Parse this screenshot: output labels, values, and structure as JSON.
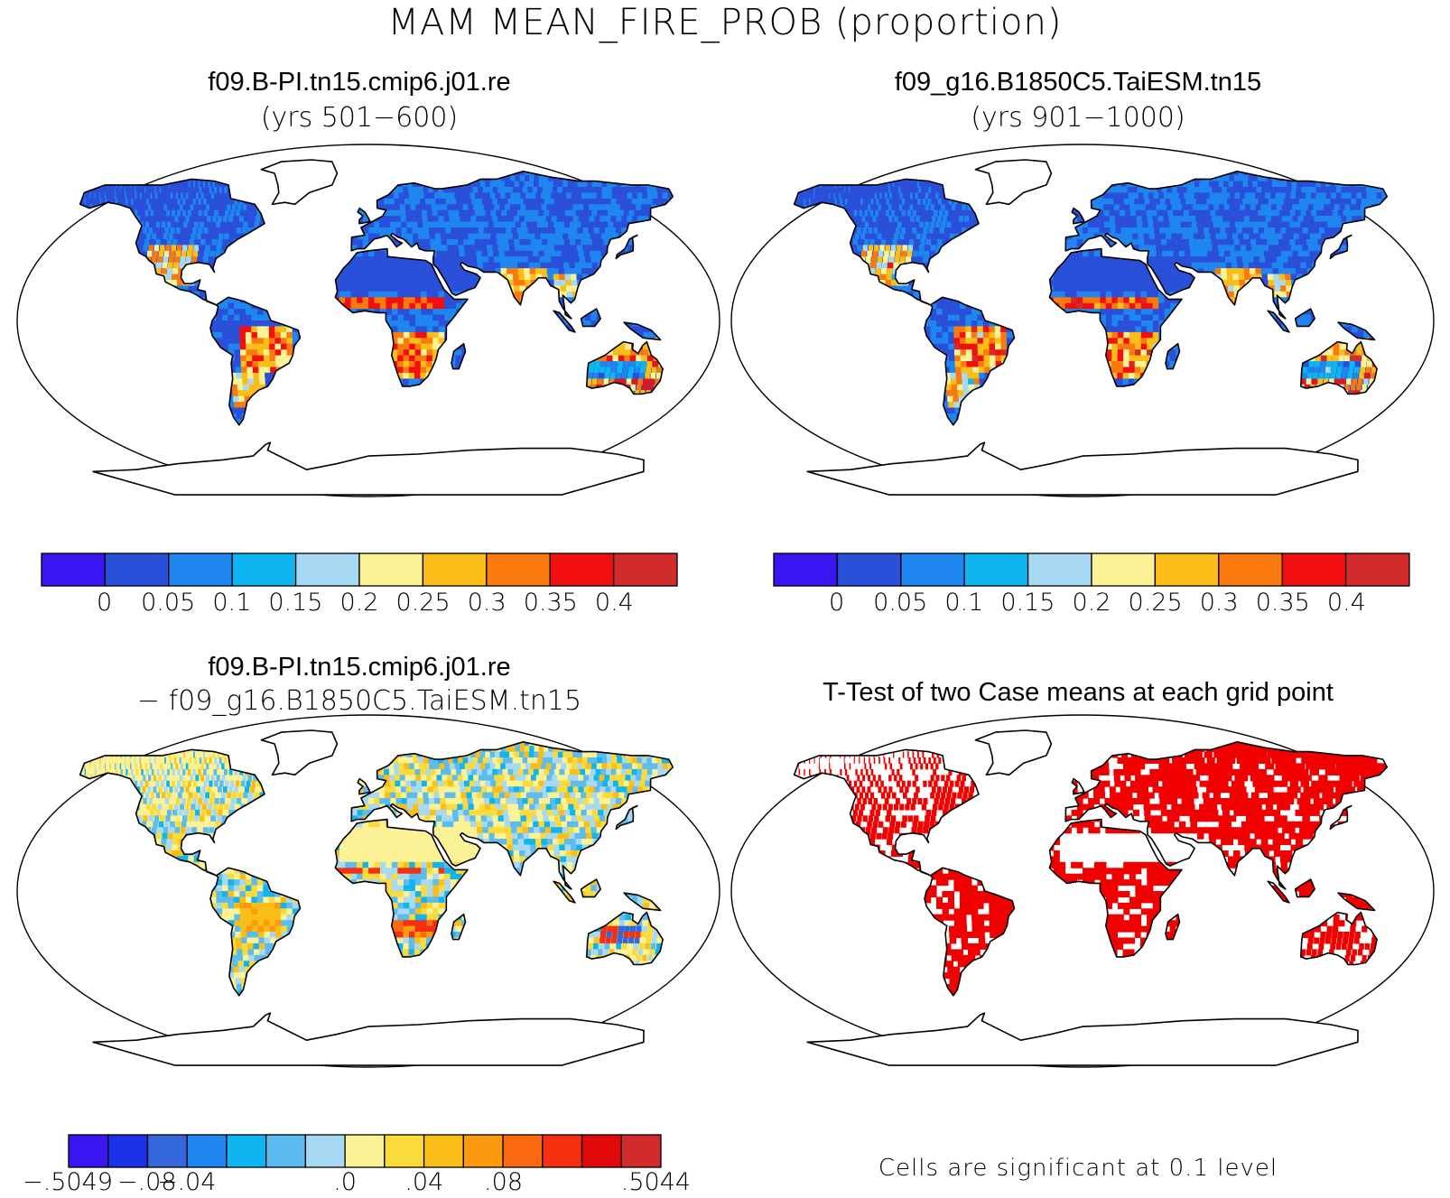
{
  "title": "MAM MEAN_FIRE_PROB (proportion)",
  "panels": {
    "top_left": {
      "title": "f09.B-PI.tn15.cmip6.j01.re",
      "subtitle": "(yrs 501−600)"
    },
    "top_right": {
      "title": "f09_g16.B1850C5.TaiESM.tn15",
      "subtitle": "(yrs 901−1000)"
    },
    "bottom_left": {
      "title": "f09.B-PI.tn15.cmip6.j01.re",
      "subtitle": "− f09_g16.B1850C5.TaiESM.tn15"
    },
    "bottom_right": {
      "title": "T-Test of two Case means at each grid point",
      "footnote": "Cells are significant at 0.1 level"
    }
  },
  "colorbar_main": {
    "colors": [
      "#3a16f2",
      "#2a4fd9",
      "#1f86f0",
      "#0fb5f0",
      "#a8d9f2",
      "#fbf296",
      "#fbbd17",
      "#fb7a10",
      "#f20f0f",
      "#d22b2b"
    ],
    "labels": [
      "0",
      "0.05",
      "0.1",
      "0.15",
      "0.2",
      "0.25",
      "0.3",
      "0.35",
      "0.4"
    ]
  },
  "colorbar_diff": {
    "colors": [
      "#3a16f2",
      "#1c32e6",
      "#3467dc",
      "#1f86f0",
      "#0fb5f0",
      "#5cbcf0",
      "#a8d9f2",
      "#fbf296",
      "#fadb3a",
      "#fbbd17",
      "#fb9a10",
      "#fb6a10",
      "#f53010",
      "#e00808",
      "#d22b2b"
    ],
    "labels": [
      "−.5049",
      "−.08",
      "−.04",
      ".0",
      ".04",
      ".08",
      ".5044"
    ]
  },
  "map_colors": {
    "ocean": "#ffffff",
    "land_outline": "#000000",
    "significant": "#f20000"
  }
}
